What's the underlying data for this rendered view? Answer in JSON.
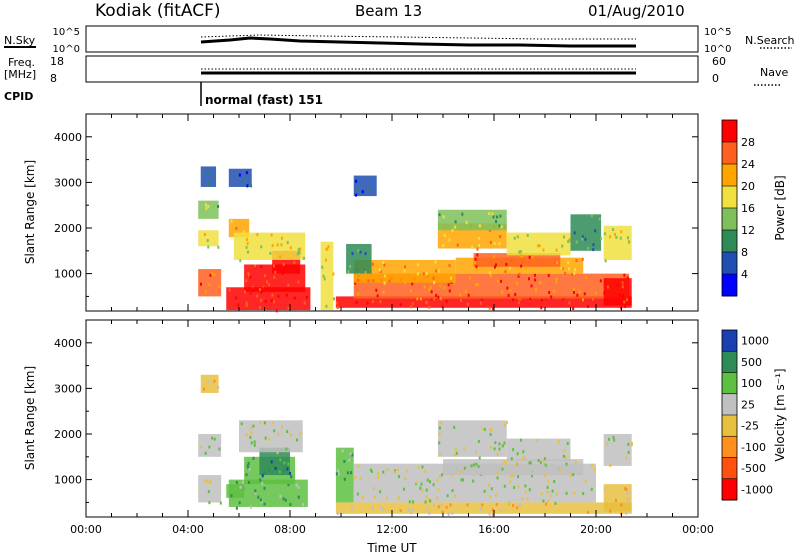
{
  "header": {
    "station": "Kodiak (fitACF)",
    "beam": "Beam 13",
    "date": "01/Aug/2010"
  },
  "noise_panel": {
    "left_label": "N.Sky",
    "left_ticks": [
      "10^5",
      "10^0"
    ],
    "right_ticks": [
      "10^5",
      "10^0"
    ],
    "right_label": "N.Search"
  },
  "freq_panel": {
    "left_label_1": "Freq.",
    "left_label_2": "[MHz]",
    "left_ticks": [
      "18",
      "8"
    ],
    "right_ticks": [
      "60",
      "0"
    ],
    "right_label": "Nave"
  },
  "cpid_panel": {
    "label": "CPID",
    "program": "normal (fast) 151"
  },
  "colors": {
    "power": [
      "#0000ff",
      "#1f4fb0",
      "#2e8b57",
      "#7fbf5a",
      "#f0e040",
      "#ffa500",
      "#ff6020",
      "#ff0000"
    ],
    "velocity": [
      "#1a3fb0",
      "#2e8b57",
      "#5ec040",
      "#c0c0c0",
      "#e8c040",
      "#ff9020",
      "#ff5010",
      "#ff0000"
    ]
  },
  "chart_data": [
    {
      "type": "heatmap",
      "name": "power",
      "xlabel": "",
      "ylabel": "Slant Range [km]",
      "xlim": [
        0,
        24
      ],
      "ylim": [
        180,
        4500
      ],
      "yticks": [
        "1000",
        "2000",
        "3000",
        "4000"
      ],
      "colorbar": {
        "label": "Power [dB]",
        "range": [
          0,
          32
        ],
        "ticks": [
          "4",
          "8",
          "12",
          "16",
          "20",
          "24",
          "28"
        ]
      },
      "patches": [
        {
          "t0": 4.4,
          "t1": 5.3,
          "r0": 500,
          "r1": 1100,
          "level": 6
        },
        {
          "t0": 4.4,
          "t1": 5.2,
          "r0": 1600,
          "r1": 1950,
          "level": 4
        },
        {
          "t0": 4.4,
          "t1": 5.2,
          "r0": 2200,
          "r1": 2600,
          "level": 3
        },
        {
          "t0": 4.5,
          "t1": 5.1,
          "r0": 2900,
          "r1": 3350,
          "level": 1
        },
        {
          "t0": 5.6,
          "t1": 6.4,
          "r0": 1800,
          "r1": 2200,
          "level": 5
        },
        {
          "t0": 5.6,
          "t1": 6.5,
          "r0": 2900,
          "r1": 3300,
          "level": 1
        },
        {
          "t0": 6.2,
          "t1": 8.6,
          "r0": 600,
          "r1": 1200,
          "level": 7
        },
        {
          "t0": 7.3,
          "t1": 8.4,
          "r0": 1000,
          "r1": 1500,
          "level": 7
        },
        {
          "t0": 5.8,
          "t1": 8.6,
          "r0": 1300,
          "r1": 1900,
          "level": 4
        },
        {
          "t0": 5.5,
          "t1": 8.8,
          "r0": 200,
          "r1": 700,
          "level": 7
        },
        {
          "t0": 9.2,
          "t1": 9.7,
          "r0": 200,
          "r1": 1700,
          "level": 4
        },
        {
          "t0": 9.8,
          "t1": 21.4,
          "r0": 250,
          "r1": 500,
          "level": 7
        },
        {
          "t0": 10.5,
          "t1": 21.3,
          "r0": 450,
          "r1": 1000,
          "level": 6
        },
        {
          "t0": 10.5,
          "t1": 14.5,
          "r0": 800,
          "r1": 1300,
          "level": 5
        },
        {
          "t0": 10.2,
          "t1": 11.2,
          "r0": 1000,
          "r1": 1650,
          "level": 2
        },
        {
          "t0": 14.5,
          "t1": 19.5,
          "r0": 1000,
          "r1": 1350,
          "level": 5
        },
        {
          "t0": 15.2,
          "t1": 18.6,
          "r0": 1150,
          "r1": 1450,
          "level": 6
        },
        {
          "t0": 13.8,
          "t1": 16.5,
          "r0": 1550,
          "r1": 2100,
          "level": 5
        },
        {
          "t0": 13.8,
          "t1": 16.5,
          "r0": 1950,
          "r1": 2400,
          "level": 3
        },
        {
          "t0": 16.5,
          "t1": 19.0,
          "r0": 1400,
          "r1": 1900,
          "level": 4
        },
        {
          "t0": 19.0,
          "t1": 20.2,
          "r0": 1500,
          "r1": 2300,
          "level": 2
        },
        {
          "t0": 20.3,
          "t1": 21.4,
          "r0": 300,
          "r1": 900,
          "level": 7
        },
        {
          "t0": 20.3,
          "t1": 21.4,
          "r0": 1300,
          "r1": 2050,
          "level": 4
        },
        {
          "t0": 10.5,
          "t1": 11.4,
          "r0": 2700,
          "r1": 3150,
          "level": 1
        }
      ]
    },
    {
      "type": "heatmap",
      "name": "velocity",
      "xlabel": "Time UT",
      "ylabel": "Slant Range [km]",
      "xlim": [
        0,
        24
      ],
      "ylim": [
        180,
        4500
      ],
      "xticks": [
        "00:00",
        "04:00",
        "08:00",
        "12:00",
        "16:00",
        "20:00",
        "00:00"
      ],
      "yticks": [
        "1000",
        "2000",
        "3000",
        "4000"
      ],
      "colorbar": {
        "label": "Velocity [m s⁻¹]",
        "ticks": [
          "1000",
          "500",
          "100",
          "25",
          "-25",
          "-100",
          "-500",
          "-1000"
        ]
      },
      "patches": [
        {
          "t0": 4.4,
          "t1": 5.3,
          "r0": 1500,
          "r1": 2000,
          "level": 3
        },
        {
          "t0": 4.4,
          "t1": 5.3,
          "r0": 500,
          "r1": 1100,
          "level": 3
        },
        {
          "t0": 5.5,
          "t1": 6.2,
          "r0": 600,
          "r1": 900,
          "level": 2
        },
        {
          "t0": 5.6,
          "t1": 8.7,
          "r0": 400,
          "r1": 1000,
          "level": 2
        },
        {
          "t0": 6.2,
          "t1": 8.2,
          "r0": 900,
          "r1": 1500,
          "level": 2
        },
        {
          "t0": 6.8,
          "t1": 8.0,
          "r0": 1100,
          "r1": 1700,
          "level": 1
        },
        {
          "t0": 6.0,
          "t1": 8.5,
          "r0": 1600,
          "r1": 2300,
          "level": 3
        },
        {
          "t0": 4.5,
          "t1": 5.2,
          "r0": 2900,
          "r1": 3300,
          "level": 4
        },
        {
          "t0": 9.8,
          "t1": 21.4,
          "r0": 250,
          "r1": 500,
          "level": 4
        },
        {
          "t0": 9.8,
          "t1": 10.5,
          "r0": 500,
          "r1": 1700,
          "level": 2
        },
        {
          "t0": 10.5,
          "t1": 20.0,
          "r0": 500,
          "r1": 1350,
          "level": 3
        },
        {
          "t0": 14.0,
          "t1": 19.5,
          "r0": 1100,
          "r1": 1450,
          "level": 3
        },
        {
          "t0": 13.8,
          "t1": 16.5,
          "r0": 1500,
          "r1": 2300,
          "level": 3
        },
        {
          "t0": 16.5,
          "t1": 19.0,
          "r0": 1400,
          "r1": 1900,
          "level": 3
        },
        {
          "t0": 20.3,
          "t1": 21.4,
          "r0": 300,
          "r1": 900,
          "level": 4
        },
        {
          "t0": 20.3,
          "t1": 21.4,
          "r0": 1300,
          "r1": 2000,
          "level": 3
        }
      ]
    }
  ]
}
